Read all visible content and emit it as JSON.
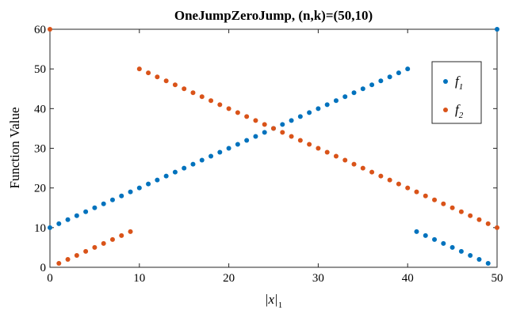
{
  "chart_data": {
    "type": "scatter",
    "title": "OneJumpZeroJump, (n,k)=(50,10)",
    "xlabel": "|x|",
    "xlabel_subscript": "1",
    "ylabel": "Function Value",
    "xlim": [
      0,
      50
    ],
    "ylim": [
      0,
      60
    ],
    "xticks": [
      "0",
      "10",
      "20",
      "30",
      "40",
      "50"
    ],
    "yticks": [
      "0",
      "10",
      "20",
      "30",
      "40",
      "50",
      "60"
    ],
    "grid": false,
    "legend_position": "right",
    "x": [
      0,
      1,
      2,
      3,
      4,
      5,
      6,
      7,
      8,
      9,
      10,
      11,
      12,
      13,
      14,
      15,
      16,
      17,
      18,
      19,
      20,
      21,
      22,
      23,
      24,
      25,
      26,
      27,
      28,
      29,
      30,
      31,
      32,
      33,
      34,
      35,
      36,
      37,
      38,
      39,
      40,
      41,
      42,
      43,
      44,
      45,
      46,
      47,
      48,
      49,
      50
    ],
    "series": [
      {
        "name": "f",
        "subscript": "1",
        "color": "#0072BD",
        "values": [
          10,
          11,
          12,
          13,
          14,
          15,
          16,
          17,
          18,
          19,
          20,
          21,
          22,
          23,
          24,
          25,
          26,
          27,
          28,
          29,
          30,
          31,
          32,
          33,
          34,
          35,
          36,
          37,
          38,
          39,
          40,
          41,
          42,
          43,
          44,
          45,
          46,
          47,
          48,
          49,
          50,
          9,
          8,
          7,
          6,
          5,
          4,
          3,
          2,
          1,
          60
        ]
      },
      {
        "name": "f",
        "subscript": "2",
        "color": "#D95319",
        "values": [
          60,
          1,
          2,
          3,
          4,
          5,
          6,
          7,
          8,
          9,
          50,
          49,
          48,
          47,
          46,
          45,
          44,
          43,
          42,
          41,
          40,
          39,
          38,
          37,
          36,
          35,
          34,
          33,
          32,
          31,
          30,
          29,
          28,
          27,
          26,
          25,
          24,
          23,
          22,
          21,
          20,
          19,
          18,
          17,
          16,
          15,
          14,
          13,
          12,
          11,
          10
        ]
      }
    ]
  }
}
